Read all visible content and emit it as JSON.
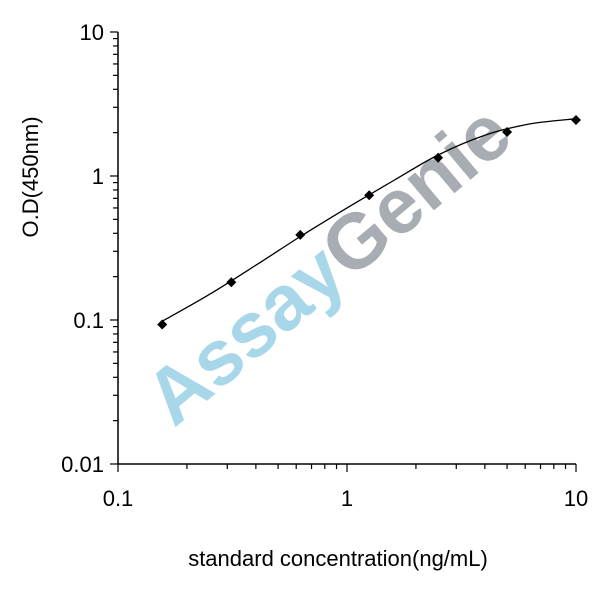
{
  "watermark": {
    "part1": "Assay",
    "part2": "Genie",
    "color1": "#a9d7ea",
    "color2": "#a8adb3"
  },
  "chart_data": {
    "type": "scatter",
    "title": "",
    "xlabel": "standard concentration(ng/mL)",
    "ylabel": "O.D(450nm)",
    "xscale": "log",
    "yscale": "log",
    "xlim": [
      0.1,
      10
    ],
    "ylim": [
      0.01,
      10
    ],
    "xticks": [
      {
        "value": 0.1,
        "label": "0.1"
      },
      {
        "value": 1,
        "label": "1"
      },
      {
        "value": 10,
        "label": "10"
      }
    ],
    "yticks": [
      {
        "value": 0.01,
        "label": "0.01"
      },
      {
        "value": 0.1,
        "label": "0.1"
      },
      {
        "value": 1,
        "label": "1"
      },
      {
        "value": 10,
        "label": "10"
      }
    ],
    "grid": false,
    "legend": "none",
    "marker_color": "#000000",
    "series": [
      {
        "x": [
          0.156,
          0.3125,
          0.625,
          1.25,
          2.5,
          5,
          10
        ],
        "y": [
          0.093,
          0.183,
          0.39,
          0.735,
          1.34,
          2.02,
          2.45
        ]
      }
    ],
    "fit_curve": {
      "x": [
        0.156,
        0.25,
        0.4,
        0.625,
        1.0,
        1.6,
        2.5,
        4.0,
        6.3,
        10
      ],
      "y": [
        0.098,
        0.15,
        0.24,
        0.38,
        0.6,
        0.93,
        1.4,
        1.92,
        2.3,
        2.5
      ]
    }
  }
}
